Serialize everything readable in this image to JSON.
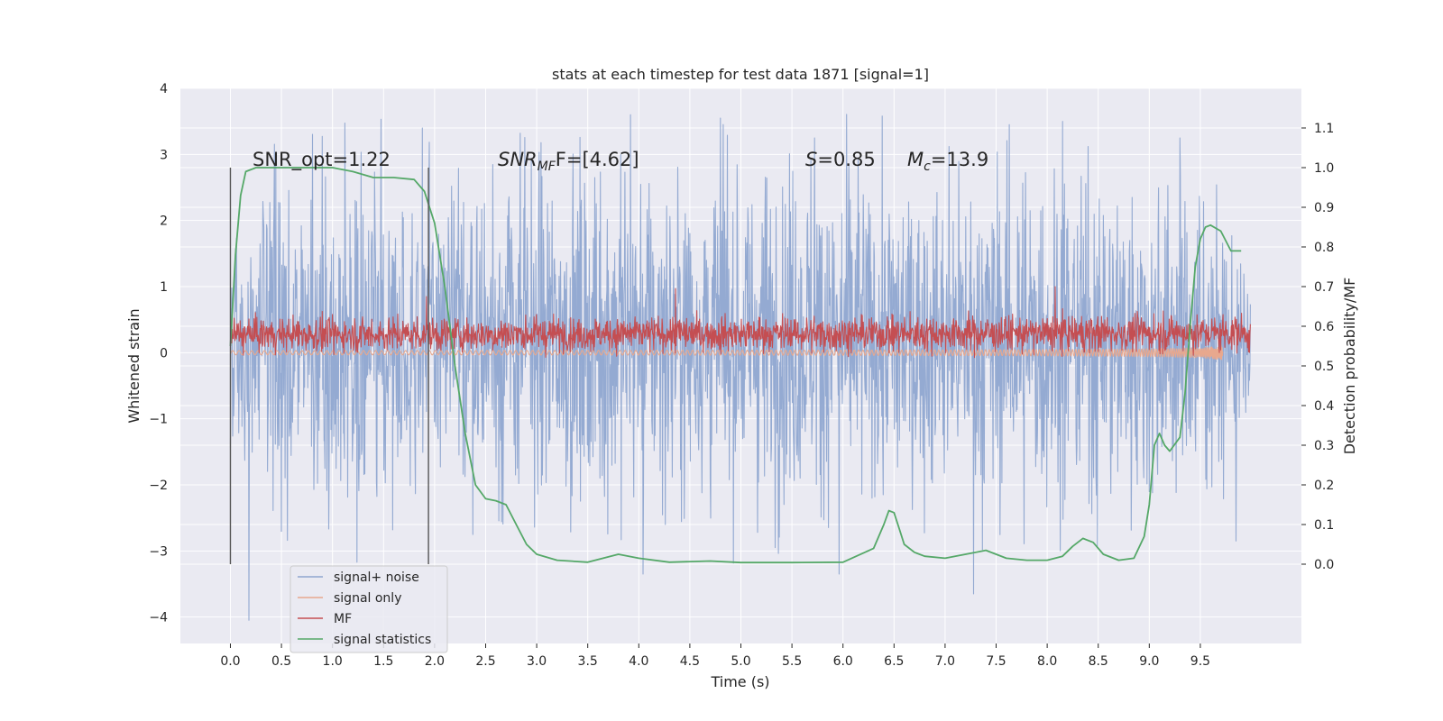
{
  "chart_data": {
    "type": "line",
    "title": "stats at each timestep for test data 1871 [signal=1]",
    "xlabel": "Time (s)",
    "ylabel_left": "Whitened strain",
    "ylabel_right": "Detection probability/MF",
    "xlim": [
      -0.49,
      10.49
    ],
    "ylim_left": [
      -4.4,
      4.0
    ],
    "ylim_right": [
      -0.2,
      1.2
    ],
    "x_ticks": [
      0.0,
      0.5,
      1.0,
      1.5,
      2.0,
      2.5,
      3.0,
      3.5,
      4.0,
      4.5,
      5.0,
      5.5,
      6.0,
      6.5,
      7.0,
      7.5,
      8.0,
      8.5,
      9.0,
      9.5
    ],
    "x_tick_labels": [
      "0.0",
      "0.5",
      "1.0",
      "1.5",
      "2.0",
      "2.5",
      "3.0",
      "3.5",
      "4.0",
      "4.5",
      "5.0",
      "5.5",
      "6.0",
      "6.5",
      "7.0",
      "7.5",
      "8.0",
      "8.5",
      "9.0",
      "9.5"
    ],
    "y_ticks_left": [
      -4,
      -3,
      -2,
      -1,
      0,
      1,
      2,
      3,
      4
    ],
    "y_tick_labels_left": [
      "−4",
      "−3",
      "−2",
      "−1",
      "0",
      "1",
      "2",
      "3",
      "4"
    ],
    "y_ticks_right": [
      0.0,
      0.1,
      0.2,
      0.3,
      0.4,
      0.5,
      0.6,
      0.7,
      0.8,
      0.9,
      1.0,
      1.1
    ],
    "y_tick_labels_right": [
      "0.0",
      "0.1",
      "0.2",
      "0.3",
      "0.4",
      "0.5",
      "0.6",
      "0.7",
      "0.8",
      "0.9",
      "1.0",
      "1.1"
    ],
    "grid": true,
    "legend_position": "lower-left",
    "annotations": {
      "snr_opt": "SNR_opt=1.22",
      "snr_mf_prefix": "SNR",
      "snr_mf_sub": "MF",
      "snr_mf_suffix": "F=[4.62]",
      "s_label": "S",
      "s_value": "=0.85",
      "mc_label": "M",
      "mc_sub": "c",
      "mc_value": "=13.9"
    },
    "vertical_lines": [
      {
        "x": 0.0,
        "y_range": [
          -3.2,
          2.8
        ]
      },
      {
        "x": 1.94,
        "y_range": [
          -3.2,
          2.8
        ]
      }
    ],
    "series": [
      {
        "name": "signal+ noise",
        "axis": "left",
        "color": "#8fa6d0",
        "kind": "noise",
        "x_range": [
          0.0,
          9.99
        ],
        "envelope": [
          {
            "x": 0.0,
            "lo": -1.5,
            "hi": 1.7
          },
          {
            "x": 0.5,
            "lo": -2.6,
            "hi": 2.8
          },
          {
            "x": 2.0,
            "lo": -2.4,
            "hi": 2.9
          },
          {
            "x": 5.0,
            "lo": -2.5,
            "hi": 3.0
          },
          {
            "x": 9.5,
            "lo": -2.4,
            "hi": 2.7
          },
          {
            "x": 9.99,
            "lo": -1.0,
            "hi": 1.0
          }
        ],
        "spikes": [
          {
            "x": 0.18,
            "y": -4.05
          },
          {
            "x": 1.88,
            "y": 3.4
          },
          {
            "x": 3.92,
            "y": 3.6
          },
          {
            "x": 4.04,
            "y": -3.35
          },
          {
            "x": 4.8,
            "y": 3.55
          },
          {
            "x": 5.72,
            "y": 3.25
          },
          {
            "x": 5.96,
            "y": -3.35
          },
          {
            "x": 7.28,
            "y": -3.65
          },
          {
            "x": 7.63,
            "y": 3.45
          },
          {
            "x": 8.15,
            "y": 3.5
          },
          {
            "x": 9.3,
            "y": 3.25
          },
          {
            "x": 9.85,
            "y": -2.85
          }
        ]
      },
      {
        "name": "signal only",
        "axis": "left",
        "color": "#e8a88e",
        "kind": "chirp",
        "x_range": [
          0.0,
          9.72
        ],
        "amplitude_end": 0.12
      },
      {
        "name": "MF",
        "axis": "left",
        "color": "#c44e52",
        "kind": "noise",
        "x_range": [
          0.0,
          9.99
        ],
        "envelope": [
          {
            "x": 0.0,
            "lo": 0.0,
            "hi": 0.55
          },
          {
            "x": 9.99,
            "lo": 0.0,
            "hi": 0.6
          }
        ],
        "spikes": [
          {
            "x": 1.92,
            "y": 0.85
          },
          {
            "x": 4.36,
            "y": 0.97
          },
          {
            "x": 8.08,
            "y": 1.0
          }
        ]
      },
      {
        "name": "signal statistics",
        "axis": "right",
        "color": "#55a868",
        "kind": "line",
        "x": [
          0.0,
          0.05,
          0.1,
          0.15,
          0.25,
          0.5,
          0.8,
          1.0,
          1.2,
          1.4,
          1.6,
          1.8,
          1.9,
          2.0,
          2.1,
          2.2,
          2.3,
          2.4,
          2.5,
          2.6,
          2.7,
          2.8,
          2.9,
          3.0,
          3.2,
          3.5,
          3.8,
          4.0,
          4.3,
          4.7,
          5.0,
          5.5,
          6.0,
          6.3,
          6.4,
          6.45,
          6.5,
          6.55,
          6.6,
          6.7,
          6.8,
          7.0,
          7.2,
          7.4,
          7.6,
          7.8,
          8.0,
          8.15,
          8.25,
          8.35,
          8.45,
          8.55,
          8.7,
          8.85,
          8.95,
          9.0,
          9.05,
          9.1,
          9.15,
          9.2,
          9.3,
          9.35,
          9.4,
          9.45,
          9.5,
          9.55,
          9.6,
          9.7,
          9.8,
          9.9
        ],
        "y": [
          0.55,
          0.78,
          0.93,
          0.99,
          1.0,
          1.0,
          1.0,
          1.0,
          0.99,
          0.975,
          0.975,
          0.97,
          0.94,
          0.86,
          0.7,
          0.5,
          0.33,
          0.2,
          0.165,
          0.16,
          0.15,
          0.1,
          0.05,
          0.025,
          0.01,
          0.005,
          0.025,
          0.015,
          0.005,
          0.008,
          0.004,
          0.004,
          0.005,
          0.04,
          0.1,
          0.135,
          0.13,
          0.09,
          0.05,
          0.03,
          0.02,
          0.015,
          0.025,
          0.035,
          0.015,
          0.01,
          0.01,
          0.02,
          0.045,
          0.065,
          0.055,
          0.025,
          0.01,
          0.015,
          0.07,
          0.15,
          0.3,
          0.33,
          0.3,
          0.285,
          0.32,
          0.43,
          0.6,
          0.75,
          0.82,
          0.85,
          0.855,
          0.84,
          0.79,
          0.79
        ]
      }
    ]
  }
}
